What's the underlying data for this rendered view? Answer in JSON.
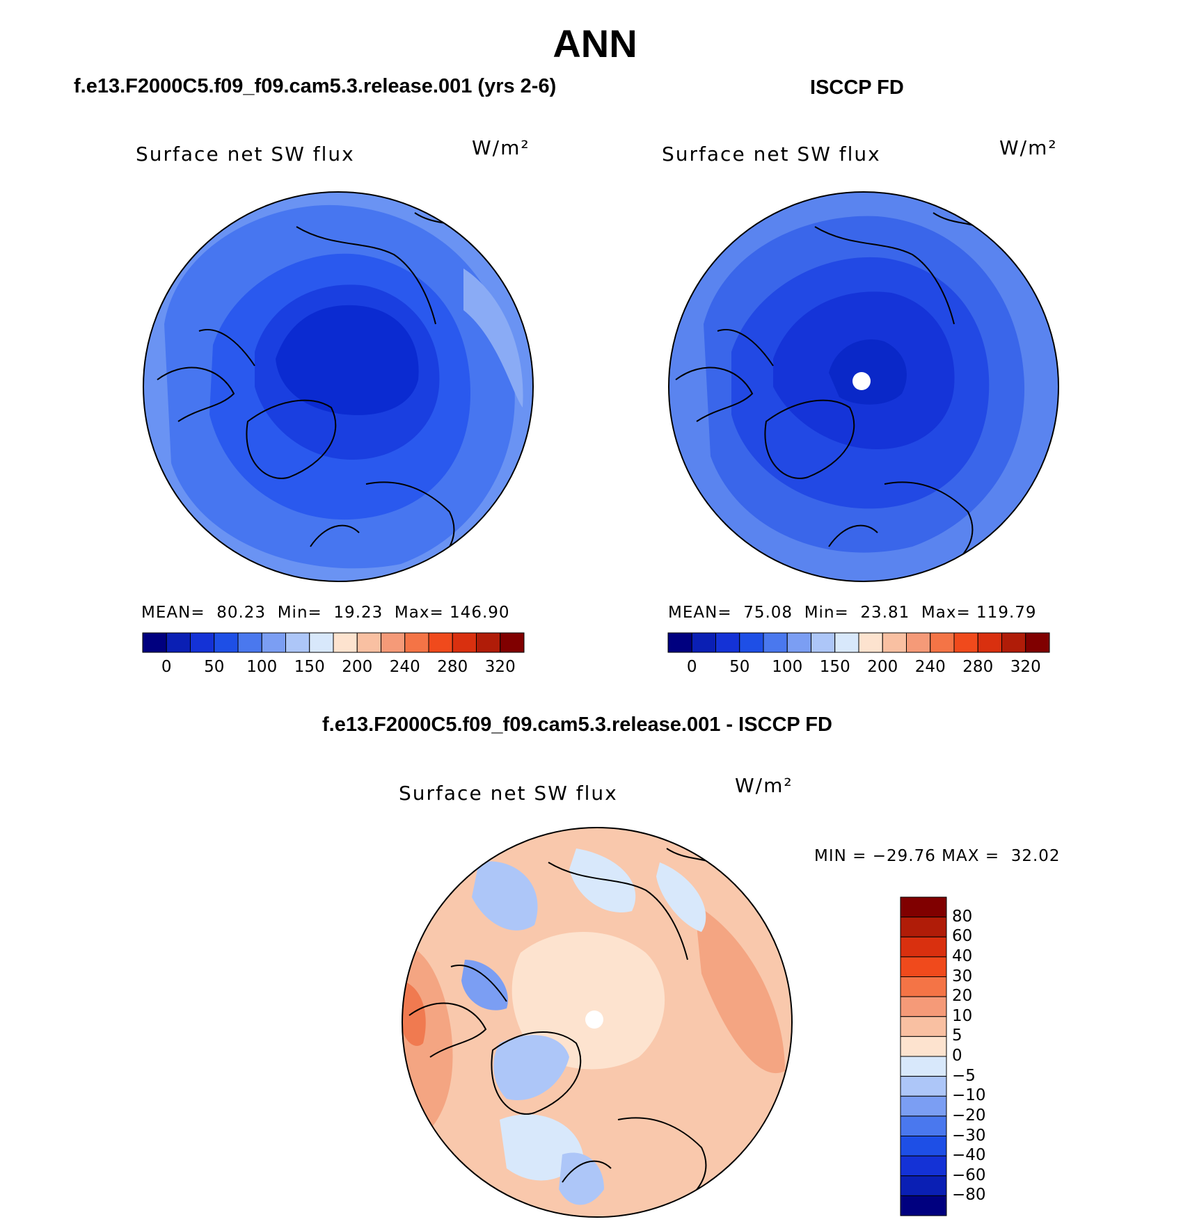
{
  "figure": {
    "title": "ANN"
  },
  "panels": [
    {
      "case_title": "f.e13.F2000C5.f09_f09.cam5.3.release.001 (yrs 2-6)",
      "plot_title": "Surface net SW flux",
      "units": "W/m²",
      "stats": {
        "mean_label": "MEAN=",
        "mean": "80.23",
        "min_label": "Min=",
        "min": "19.23",
        "max_label": "Max=",
        "max": "146.90"
      },
      "map_palette": [
        "#0b2bd1",
        "#1a3fe0",
        "#2a59ee",
        "#4776f0",
        "#6a93f3",
        "#8aabf5"
      ]
    },
    {
      "case_title": "ISCCP FD",
      "plot_title": "Surface net SW flux",
      "units": "W/m²",
      "stats": {
        "mean_label": "MEAN=",
        "mean": "75.08",
        "min_label": "Min=",
        "min": "23.81",
        "max_label": "Max=",
        "max": "119.79"
      },
      "map_palette": [
        "#0a28c8",
        "#1534d8",
        "#2249e4",
        "#3a66ea",
        "#5a84ef",
        "#7aa0f2"
      ]
    }
  ],
  "abs_colorbar": {
    "colors": [
      "#00007f",
      "#0a1fb4",
      "#1432d6",
      "#1e4fe6",
      "#4a78ee",
      "#7b9ef3",
      "#adc6f8",
      "#d8e8fb",
      "#fde3cf",
      "#f9c0a2",
      "#f59a78",
      "#f47446",
      "#f04a1c",
      "#d9300f",
      "#b01c08",
      "#800000"
    ],
    "labels": [
      "0",
      "50",
      "100",
      "150",
      "200",
      "240",
      "280",
      "320"
    ]
  },
  "diff_panel": {
    "case_title": "f.e13.F2000C5.f09_f09.cam5.3.release.001 - ISCCP FD",
    "plot_title": "Surface net SW flux",
    "units": "W/m²",
    "stats": {
      "min_label": "MIN =",
      "min": "−29.76",
      "max_label": "MAX =",
      "max": "32.02"
    },
    "map_palette": [
      "#fde3cf",
      "#f9c8ac",
      "#f4a582",
      "#d8e8fb",
      "#adc6f8",
      "#7b9ef3",
      "#f07a50"
    ]
  },
  "diff_colorbar": {
    "colors": [
      "#800000",
      "#b01c08",
      "#d9300f",
      "#f04a1c",
      "#f47446",
      "#f59a78",
      "#f9c0a2",
      "#fde3cf",
      "#d8e8fb",
      "#adc6f8",
      "#7b9ef3",
      "#4a78ee",
      "#1e4fe6",
      "#1432d6",
      "#0a1fb4",
      "#00007f"
    ],
    "labels": [
      "80",
      "60",
      "40",
      "30",
      "20",
      "10",
      "5",
      "0",
      "−5",
      "−10",
      "−20",
      "−30",
      "−40",
      "−60",
      "−80"
    ]
  }
}
